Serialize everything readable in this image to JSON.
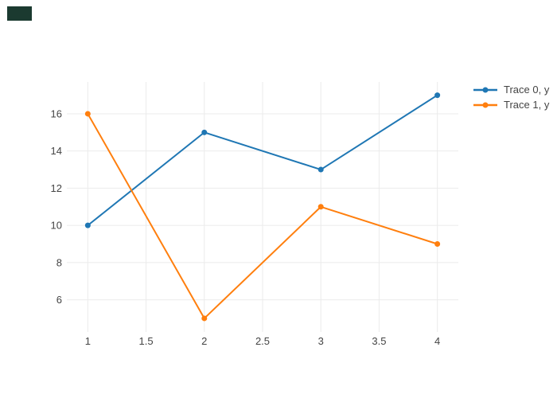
{
  "figure": {
    "background": "#ffffff",
    "corner_artifact_color": "#1b3a30"
  },
  "chart_data": {
    "type": "line",
    "mode": "lines+markers",
    "title": "",
    "xlabel": "",
    "ylabel": "",
    "x": [
      1,
      2,
      3,
      4
    ],
    "series": [
      {
        "name": "Trace 0, y",
        "color": "#1f77b4",
        "values": [
          10,
          15,
          13,
          17
        ]
      },
      {
        "name": "Trace 1, y",
        "color": "#ff7f0e",
        "values": [
          16,
          5,
          11,
          9
        ]
      }
    ],
    "x_ticks": [
      1,
      1.5,
      2,
      2.5,
      3,
      3.5,
      4
    ],
    "x_tick_labels": [
      "1",
      "1.5",
      "2",
      "2.5",
      "3",
      "3.5",
      "4"
    ],
    "y_ticks": [
      6,
      8,
      10,
      12,
      14,
      16
    ],
    "y_tick_labels": [
      "6",
      "8",
      "10",
      "12",
      "14",
      "16"
    ],
    "x_range": [
      0.82,
      4.18
    ],
    "y_range": [
      4.27,
      17.71
    ],
    "grid": true,
    "grid_color": "#ebebeb",
    "tick_label_color": "#444444",
    "line_width": 2,
    "marker_radius": 3.5,
    "legend_position": "top-right",
    "legend": [
      "Trace 0, y",
      "Trace 1, y"
    ]
  }
}
